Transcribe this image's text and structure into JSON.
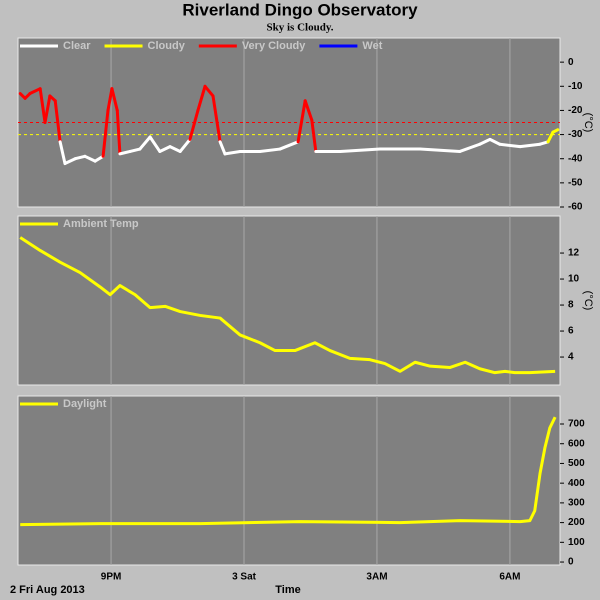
{
  "title": "Riverland Dingo Observatory",
  "subtitle": "Sky is Cloudy.",
  "x_axis": {
    "label": "Time",
    "date": "2 Fri Aug 2013",
    "xlim": [
      18.9,
      31.13
    ],
    "xticks": [
      {
        "value": 21,
        "label": "9PM"
      },
      {
        "value": 24,
        "label": "3 Sat"
      },
      {
        "value": 27,
        "label": "3AM"
      },
      {
        "value": 30,
        "label": "6AM"
      }
    ]
  },
  "chart_data": [
    {
      "type": "threshold-line",
      "ylabel": "(°C)",
      "ylim": [
        -60,
        10
      ],
      "yticks": [
        0,
        -10,
        -20,
        -30,
        -40,
        -50,
        -60
      ],
      "legend": [
        {
          "name": "Clear",
          "color": "#ffffff"
        },
        {
          "name": "Cloudy",
          "color": "#ffff00"
        },
        {
          "name": "Very Cloudy",
          "color": "#ff0000"
        },
        {
          "name": "Wet",
          "color": "#0000ff"
        }
      ],
      "levels": [
        {
          "min": -25,
          "color": "#ff0000"
        },
        {
          "min": -30,
          "color": "#ffff00"
        }
      ],
      "x": [
        18.95,
        19.06,
        19.17,
        19.4,
        19.51,
        19.62,
        19.74,
        19.85,
        19.96,
        20.19,
        20.41,
        20.64,
        20.82,
        20.93,
        21.02,
        21.14,
        21.2,
        21.43,
        21.65,
        21.88,
        22.1,
        22.33,
        22.56,
        22.78,
        22.96,
        23.12,
        23.3,
        23.46,
        23.57,
        23.91,
        24.36,
        24.81,
        25.22,
        25.38,
        25.53,
        25.62,
        26.17,
        27.07,
        27.97,
        28.87,
        29.32,
        29.55,
        29.77,
        30.23,
        30.68,
        30.86,
        30.97,
        31.08
      ],
      "values": [
        -13,
        -15,
        -13,
        -11,
        -25,
        -14,
        -16,
        -33,
        -42,
        -40,
        -39,
        -41,
        -39,
        -20,
        -11,
        -20,
        -38,
        -37,
        -36,
        -31,
        -37,
        -35,
        -37,
        -32,
        -20,
        -10,
        -14,
        -33,
        -38,
        -37,
        -37,
        -36,
        -33,
        -16,
        -24,
        -37,
        -37,
        -36,
        -36,
        -37,
        -34,
        -32,
        -34,
        -35,
        -34,
        -33,
        -29,
        -28
      ]
    },
    {
      "type": "line",
      "ylabel": "(°C)",
      "ylim": [
        1.85,
        14.85
      ],
      "yticks": [
        4,
        6,
        8,
        10,
        12
      ],
      "series": [
        {
          "name": "Ambient Temp",
          "color": "#ffff00",
          "x": [
            18.95,
            19.4,
            19.85,
            20.3,
            20.75,
            20.98,
            21.2,
            21.54,
            21.88,
            22.22,
            22.56,
            23.01,
            23.46,
            23.91,
            24.36,
            24.7,
            25.15,
            25.6,
            25.94,
            26.39,
            26.84,
            27.18,
            27.52,
            27.86,
            28.2,
            28.65,
            28.99,
            29.32,
            29.66,
            29.89,
            30.11,
            30.45,
            31.02
          ],
          "values": [
            13.2,
            12.2,
            11.3,
            10.5,
            9.4,
            8.8,
            9.5,
            8.8,
            7.8,
            7.9,
            7.5,
            7.2,
            7.0,
            5.7,
            5.1,
            4.5,
            4.5,
            5.1,
            4.5,
            3.9,
            3.8,
            3.5,
            2.9,
            3.6,
            3.3,
            3.2,
            3.6,
            3.1,
            2.8,
            2.9,
            2.8,
            2.8,
            2.9
          ]
        }
      ]
    },
    {
      "type": "line",
      "ylim": [
        -15,
        842
      ],
      "yticks": [
        0,
        100,
        200,
        300,
        400,
        500,
        600,
        700
      ],
      "series": [
        {
          "name": "Daylight",
          "color": "#ffff00",
          "x": [
            18.95,
            20.75,
            23.01,
            25.26,
            27.52,
            28.87,
            30.23,
            30.45,
            30.56,
            30.68,
            30.79,
            30.9,
            31.02
          ],
          "values": [
            190,
            195,
            195,
            205,
            200,
            210,
            205,
            210,
            260,
            450,
            580,
            680,
            735
          ]
        }
      ]
    }
  ]
}
